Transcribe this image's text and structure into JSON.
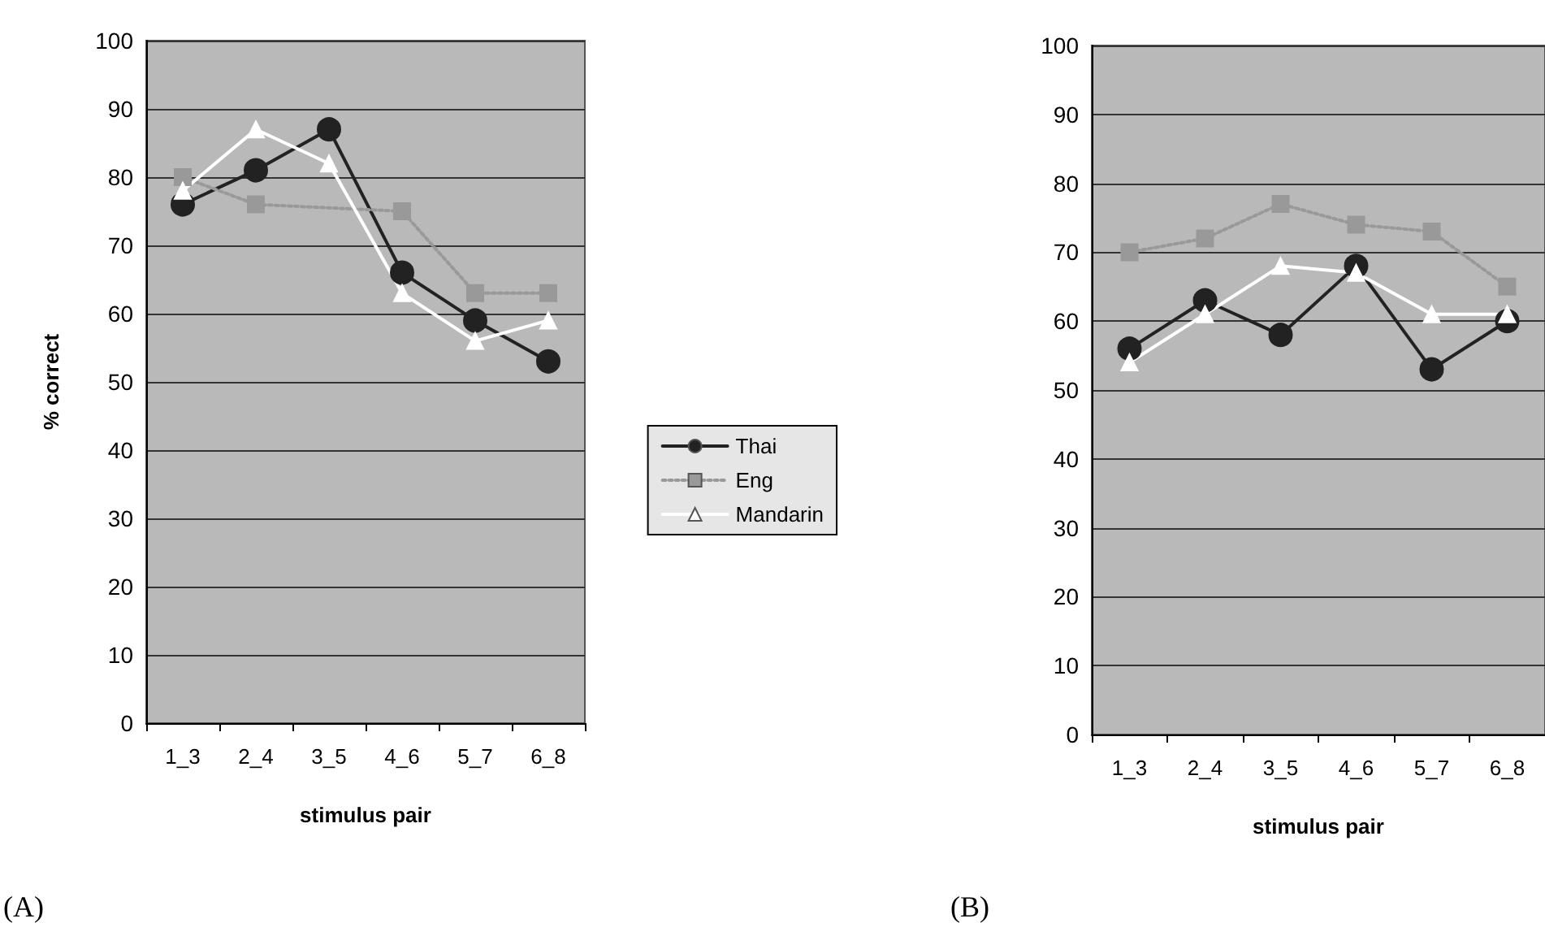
{
  "chart_data": [
    {
      "type": "line",
      "xlabel": "stimulus pair",
      "ylabel": "% correct",
      "categories": [
        "1_3",
        "2_4",
        "3_5",
        "4_6",
        "5_7",
        "6_8"
      ],
      "ylim": [
        0,
        100
      ],
      "yticks": [
        0,
        10,
        20,
        30,
        40,
        50,
        60,
        70,
        80,
        90,
        100
      ],
      "grid": "y",
      "legend": "right",
      "annotations": [
        "(A)"
      ],
      "series": [
        {
          "name": "Thai",
          "color": "#222222",
          "marker": "circle",
          "line_style": "solid",
          "values": [
            76,
            81,
            87,
            66,
            59,
            53
          ]
        },
        {
          "name": "Eng",
          "color": "#999999",
          "marker": "square",
          "line_style": "dotted",
          "values": [
            80,
            76,
            null,
            75,
            63,
            63
          ]
        },
        {
          "name": "Mandarin",
          "color": "#ffffff",
          "marker": "triangle",
          "line_style": "solid",
          "values": [
            78,
            87,
            82,
            63,
            56,
            59
          ]
        }
      ]
    },
    {
      "type": "line",
      "xlabel": "stimulus pair",
      "categories": [
        "1_3",
        "2_4",
        "3_5",
        "4_6",
        "5_7",
        "6_8"
      ],
      "ylim": [
        0,
        100
      ],
      "yticks": [
        0,
        10,
        20,
        30,
        40,
        50,
        60,
        70,
        80,
        90,
        100
      ],
      "grid": "y",
      "annotations": [
        "(B)"
      ],
      "series": [
        {
          "color": "#222222",
          "marker": "circle",
          "line_style": "solid",
          "values": [
            56,
            63,
            58,
            68,
            53,
            60
          ]
        },
        {
          "color": "#999999",
          "marker": "square",
          "line_style": "dotted",
          "values": [
            70,
            72,
            77,
            74,
            73,
            65
          ]
        },
        {
          "color": "#ffffff",
          "marker": "triangle",
          "line_style": "solid",
          "values": [
            54,
            61,
            68,
            67,
            61,
            61
          ]
        }
      ]
    }
  ]
}
